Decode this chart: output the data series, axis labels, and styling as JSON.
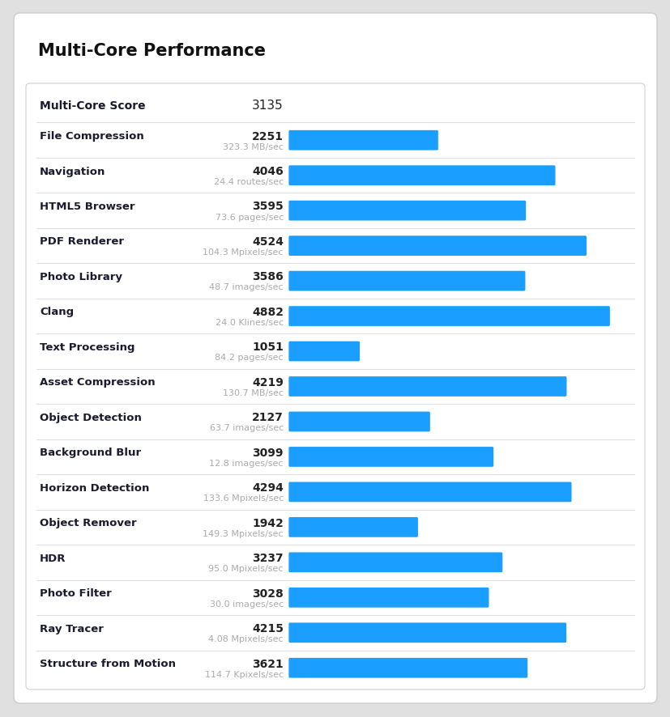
{
  "title": "Multi-Core Performance",
  "main_score_label": "Multi-Core Score",
  "main_score_value": "3135",
  "bar_color": "#1a9eff",
  "max_value": 5200,
  "rows": [
    {
      "label": "File Compression",
      "sublabel": "323.3 MB/sec",
      "value": 2251
    },
    {
      "label": "Navigation",
      "sublabel": "24.4 routes/sec",
      "value": 4046
    },
    {
      "label": "HTML5 Browser",
      "sublabel": "73.6 pages/sec",
      "value": 3595
    },
    {
      "label": "PDF Renderer",
      "sublabel": "104.3 Mpixels/sec",
      "value": 4524
    },
    {
      "label": "Photo Library",
      "sublabel": "48.7 images/sec",
      "value": 3586
    },
    {
      "label": "Clang",
      "sublabel": "24.0 Klines/sec",
      "value": 4882
    },
    {
      "label": "Text Processing",
      "sublabel": "84.2 pages/sec",
      "value": 1051
    },
    {
      "label": "Asset Compression",
      "sublabel": "130.7 MB/sec",
      "value": 4219
    },
    {
      "label": "Object Detection",
      "sublabel": "63.7 images/sec",
      "value": 2127
    },
    {
      "label": "Background Blur",
      "sublabel": "12.8 images/sec",
      "value": 3099
    },
    {
      "label": "Horizon Detection",
      "sublabel": "133.6 Mpixels/sec",
      "value": 4294
    },
    {
      "label": "Object Remover",
      "sublabel": "149.3 Mpixels/sec",
      "value": 1942
    },
    {
      "label": "HDR",
      "sublabel": "95.0 Mpixels/sec",
      "value": 3237
    },
    {
      "label": "Photo Filter",
      "sublabel": "30.0 images/sec",
      "value": 3028
    },
    {
      "label": "Ray Tracer",
      "sublabel": "4.08 Mpixels/sec",
      "value": 4215
    },
    {
      "label": "Structure from Motion",
      "sublabel": "114.7 Kpixels/sec",
      "value": 3621
    }
  ],
  "bg_outer": "#e0e0e0",
  "bg_white": "#ffffff",
  "label_color": "#1a1a2e",
  "sublabel_color": "#aaaaaa",
  "score_color": "#222222",
  "title_color": "#111111",
  "divider_color": "#e0e0e0",
  "title_fontsize": 15,
  "label_fontsize": 9.5,
  "sublabel_fontsize": 8,
  "score_fontsize": 10,
  "header_score_fontsize": 11
}
